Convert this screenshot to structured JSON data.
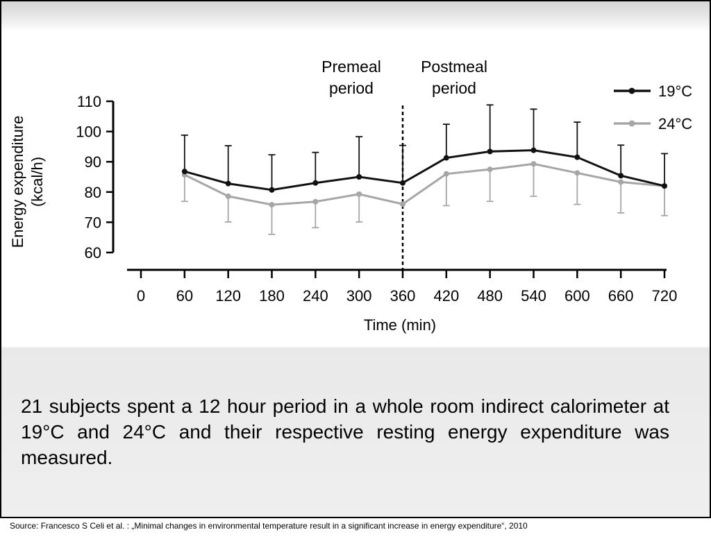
{
  "chart_data": {
    "type": "line",
    "title": "",
    "xlabel": "Time (min)",
    "ylabel": "Energy expenditure (kcal/h)",
    "ylabel_lines": [
      "Energy expenditure",
      "(kcal/h)"
    ],
    "x": [
      60,
      120,
      180,
      240,
      300,
      360,
      420,
      480,
      540,
      600,
      660,
      720
    ],
    "xticks": [
      0,
      60,
      120,
      180,
      240,
      300,
      360,
      420,
      480,
      540,
      600,
      660,
      720
    ],
    "yticks": [
      60,
      70,
      80,
      90,
      100,
      110
    ],
    "xlim": [
      0,
      720
    ],
    "ylim": [
      60,
      110
    ],
    "grid": false,
    "legend_position": "top-right",
    "series": [
      {
        "name": "19°C",
        "color": "#111111",
        "values": [
          86.8,
          82.8,
          80.7,
          83.0,
          85.0,
          83.0,
          91.3,
          93.4,
          93.8,
          91.5,
          85.4,
          82.0
        ],
        "error_upper": [
          98.8,
          95.3,
          92.3,
          93.1,
          98.3,
          95.4,
          102.4,
          108.8,
          107.4,
          103.1,
          95.5,
          92.7
        ]
      },
      {
        "name": "24°C",
        "color": "#a6a6a6",
        "values": [
          85.7,
          78.6,
          75.8,
          76.8,
          79.3,
          76.0,
          86.0,
          87.5,
          89.3,
          86.3,
          83.3,
          82.0
        ],
        "error_lower": [
          76.9,
          70.1,
          66.0,
          68.2,
          70.1,
          null,
          75.5,
          76.9,
          78.6,
          75.9,
          73.1,
          72.2
        ]
      }
    ],
    "annotations": {
      "divider_x": 360,
      "premeal_lines": [
        "Premeal",
        "period"
      ],
      "postmeal_lines": [
        "Postmeal",
        "period"
      ]
    }
  },
  "caption": "21 subjects spent a 12 hour period in a whole room indirect calorimeter at 19°C and 24°C and their respective resting energy expenditure was measured.",
  "source": "Source: Francesco S Celi et al. : „Minimal changes in environmental temperature result in a significant increase in energy expenditure“, 2010"
}
